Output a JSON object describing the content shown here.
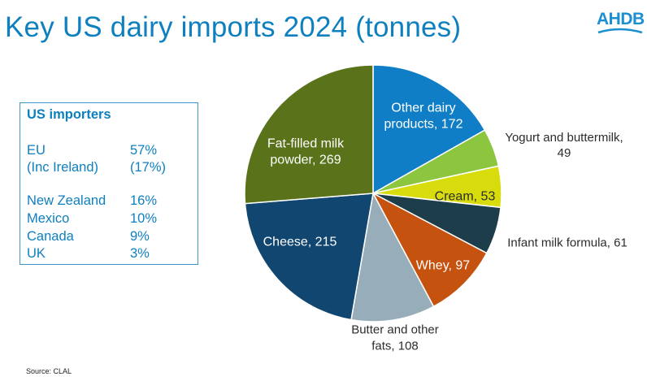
{
  "title": "Key US dairy imports 2024 (tonnes)",
  "logo": {
    "text": "AHDB",
    "color": "#1b8fd0"
  },
  "importers": {
    "title": "US importers",
    "rows": [
      {
        "name": "EU",
        "value": "57%"
      },
      {
        "name": "(Inc Ireland)",
        "value": "(17%)"
      },
      {
        "name": "New Zealand",
        "value": "16%"
      },
      {
        "name": "Mexico",
        "value": "10%"
      },
      {
        "name": "Canada",
        "value": "9%"
      },
      {
        "name": "UK",
        "value": "3%"
      }
    ]
  },
  "source": "Source: CLAL",
  "chart_data": {
    "type": "pie",
    "title": "Key US dairy imports 2024 (tonnes)",
    "slices": [
      {
        "label": "Other dairy products",
        "value": 172,
        "color": "#0f7ec6",
        "display": [
          "Other dairy",
          "products, 172"
        ]
      },
      {
        "label": "Yogurt and buttermilk",
        "value": 49,
        "color": "#8cc63e",
        "display": [
          "Yogurt and buttermilk,",
          "49"
        ]
      },
      {
        "label": "Cream",
        "value": 53,
        "color": "#d8dc0d",
        "display": [
          "Cream, 53"
        ]
      },
      {
        "label": "Infant milk formula",
        "value": 61,
        "color": "#1e3d4a",
        "display": [
          "Infant milk formula, 61"
        ]
      },
      {
        "label": "Whey",
        "value": 97,
        "color": "#c6520f",
        "display": [
          "Whey, 97"
        ]
      },
      {
        "label": "Butter and other fats",
        "value": 108,
        "color": "#97adb9",
        "display": [
          "Butter and other",
          "fats, 108"
        ]
      },
      {
        "label": "Cheese",
        "value": 215,
        "color": "#10466f",
        "display": [
          "Cheese, 215"
        ]
      },
      {
        "label": "Fat-filled milk powder",
        "value": 269,
        "color": "#5a7219",
        "display": [
          "Fat-filled milk",
          "powder, 269"
        ]
      }
    ]
  }
}
